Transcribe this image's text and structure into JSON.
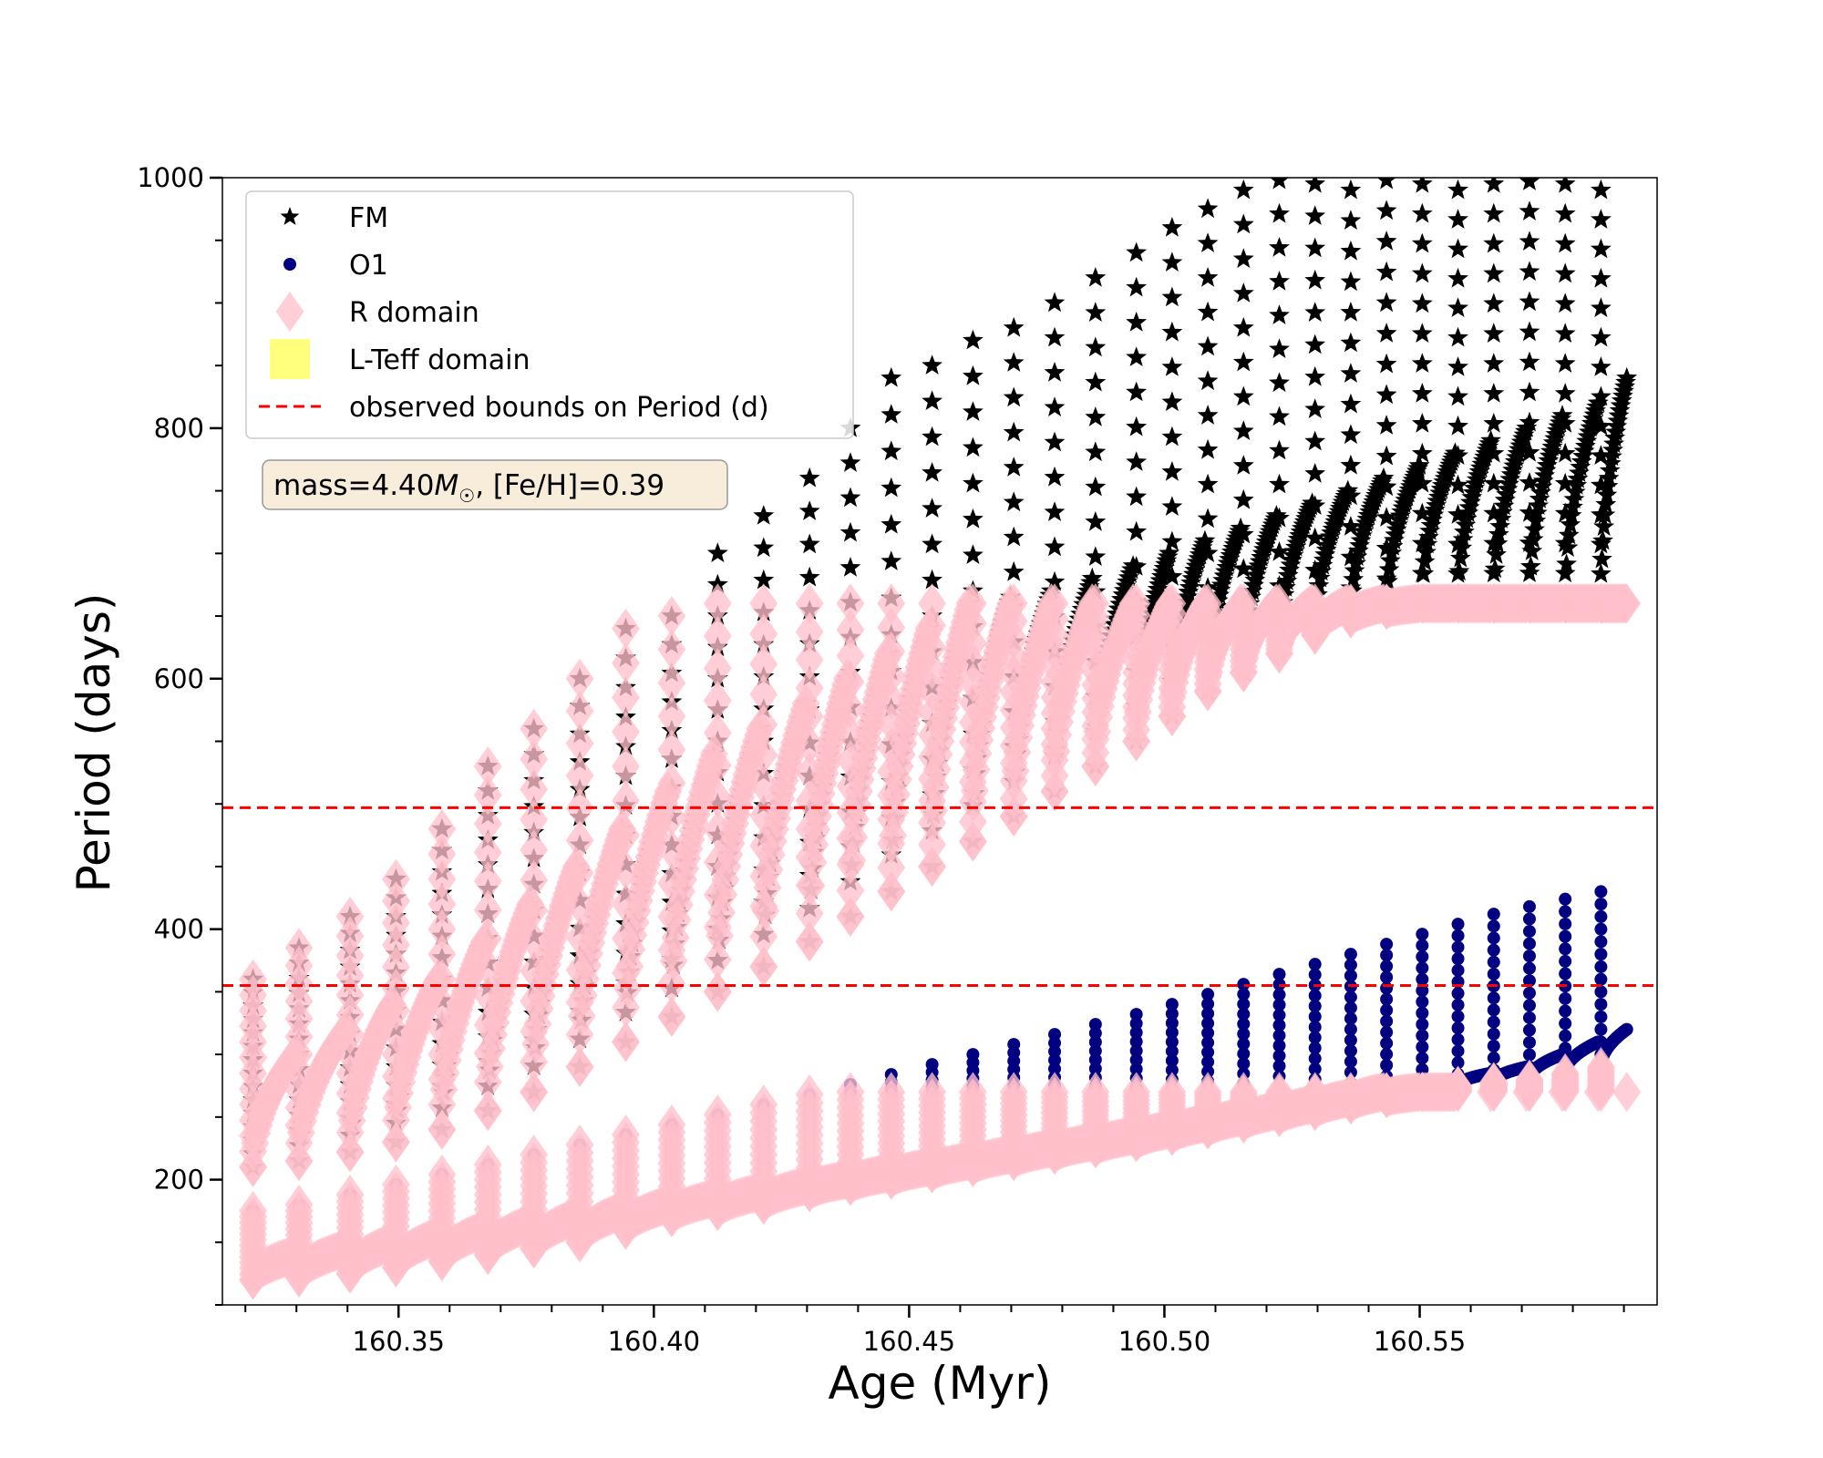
{
  "chart_data": {
    "type": "scatter",
    "xlabel": "Age (Myr)",
    "ylabel": "Period (days)",
    "xlim": [
      160.3155,
      160.5965
    ],
    "ylim": [
      100,
      1000
    ],
    "xticks": [
      160.35,
      160.4,
      160.45,
      160.5,
      160.55
    ],
    "xtick_labels": [
      "160.35",
      "160.40",
      "160.45",
      "160.50",
      "160.55"
    ],
    "yticks": [
      200,
      400,
      600,
      800,
      1000
    ],
    "ytick_labels": [
      "200",
      "400",
      "600",
      "800",
      "1000"
    ],
    "grid": false,
    "legend_position": "top-left",
    "legend": [
      {
        "label": "FM",
        "marker": "star",
        "color": "#000000"
      },
      {
        "label": "O1",
        "marker": "circle",
        "color": "#000080"
      },
      {
        "label": "R domain",
        "marker": "diamond",
        "color": "#ffc0cb"
      },
      {
        "label": "L-Teff domain",
        "marker": "square",
        "color": "#ffff66"
      },
      {
        "label": "observed bounds on Period (d)",
        "marker": "dashed-line",
        "color": "#ff0000"
      }
    ],
    "annotation": {
      "prefix": "mass=4.40",
      "symbol": "M",
      "subscript": "☉",
      "suffix": ", [Fe/H]=0.39"
    },
    "hlines": [
      {
        "name": "observed bounds on Period (d)",
        "y": 497,
        "style": "dashed",
        "color": "#ff0000"
      },
      {
        "name": "observed bounds on Period (d)",
        "y": 355,
        "style": "dashed",
        "color": "#ff0000"
      }
    ],
    "pulse_ages": [
      160.3215,
      160.3305,
      160.3405,
      160.3495,
      160.3585,
      160.3675,
      160.3765,
      160.3855,
      160.3945,
      160.4035,
      160.4125,
      160.4215,
      160.4305,
      160.4385,
      160.4465,
      160.4545,
      160.4625,
      160.4705,
      160.4785,
      160.4865,
      160.4945,
      160.5015,
      160.5085,
      160.5155,
      160.5225,
      160.5295,
      160.5365,
      160.5435,
      160.5505,
      160.5575,
      160.5645,
      160.5715,
      160.5785,
      160.5855
    ],
    "series": [
      {
        "name": "FM",
        "marker": "star",
        "color": "#000000",
        "loop_start": [
          210,
          215,
          222,
          230,
          240,
          255,
          270,
          290,
          310,
          330,
          350,
          370,
          390,
          410,
          430,
          450,
          470,
          490,
          510,
          530,
          550,
          570,
          590,
          605,
          620,
          635,
          648,
          655,
          660,
          660,
          660,
          660,
          660,
          660
        ],
        "loop_peak": [
          360,
          385,
          410,
          440,
          480,
          530,
          560,
          600,
          640,
          650,
          700,
          730,
          760,
          800,
          840,
          850,
          870,
          880,
          900,
          920,
          940,
          960,
          975,
          990,
          998,
          995,
          990,
          998,
          995,
          990,
          995,
          997,
          995,
          990
        ],
        "loop_end": [
          300,
          320,
          340,
          360,
          390,
          420,
          450,
          480,
          510,
          540,
          560,
          580,
          600,
          620,
          640,
          660,
          665,
          670,
          680,
          690,
          700,
          710,
          720,
          730,
          740,
          750,
          760,
          770,
          780,
          790,
          800,
          810,
          820,
          840
        ]
      },
      {
        "name": "O1",
        "marker": "circle",
        "color": "#000080",
        "loop_start": [
          120,
          122,
          125,
          130,
          135,
          140,
          145,
          150,
          160,
          170,
          175,
          180,
          190,
          195,
          200,
          205,
          210,
          215,
          220,
          225,
          230,
          235,
          240,
          245,
          250,
          255,
          260,
          265,
          270,
          275,
          278,
          280,
          285,
          290
        ],
        "loop_peak": [
          175,
          180,
          188,
          196,
          204,
          212,
          220,
          228,
          236,
          244,
          252,
          260,
          268,
          276,
          284,
          292,
          300,
          308,
          316,
          324,
          332,
          340,
          348,
          356,
          364,
          372,
          380,
          388,
          396,
          404,
          412,
          418,
          424,
          430
        ],
        "loop_end": [
          140,
          145,
          150,
          155,
          160,
          165,
          170,
          175,
          180,
          185,
          190,
          195,
          200,
          205,
          210,
          215,
          220,
          225,
          230,
          235,
          240,
          245,
          250,
          255,
          260,
          265,
          270,
          275,
          280,
          285,
          290,
          300,
          310,
          320
        ]
      },
      {
        "name": "R domain",
        "marker": "diamond",
        "color": "#ffc0cb",
        "description_of_values": "FM and O1 loops in the radius-constrained period range"
      }
    ]
  }
}
